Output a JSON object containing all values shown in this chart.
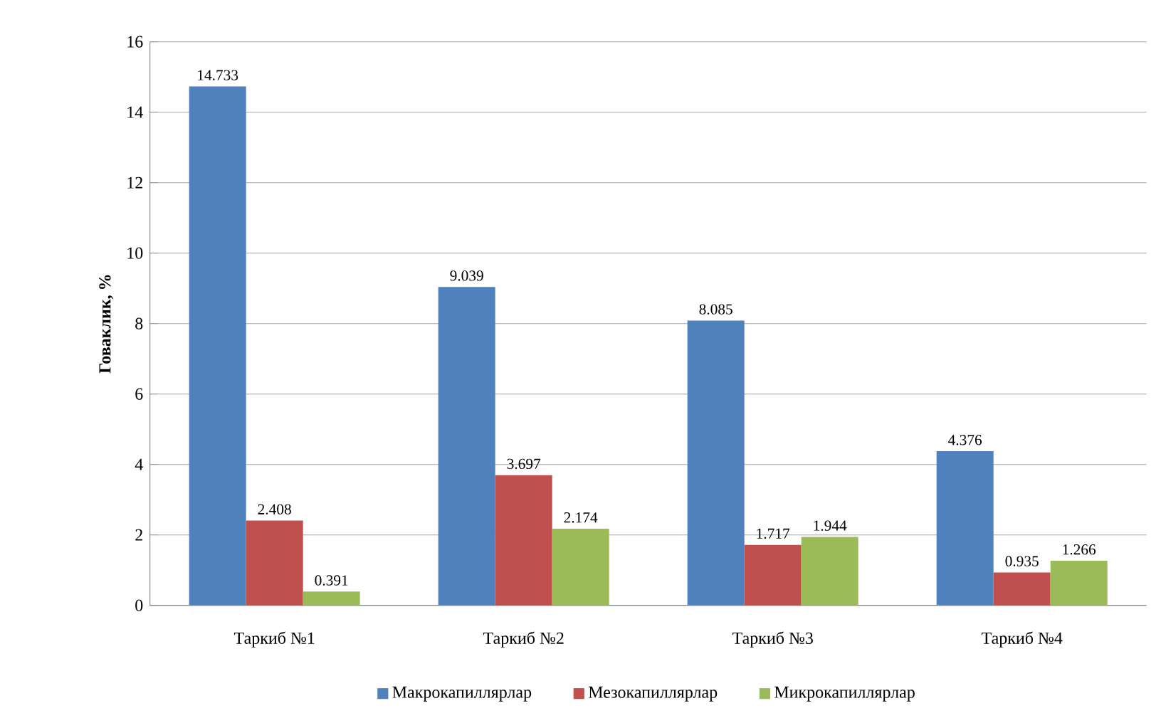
{
  "chart_data": {
    "type": "bar",
    "ylabel": "Говаклик, %",
    "categories": [
      "Таркиб №1",
      "Таркиб №2",
      "Таркиб №3",
      "Таркиб №4"
    ],
    "series": [
      {
        "name": "Макрокапиллярлар",
        "color": "#4f81bd",
        "values": [
          14.733,
          9.039,
          8.085,
          4.376
        ]
      },
      {
        "name": "Мезокапиллярлар",
        "color": "#c0504d",
        "values": [
          2.408,
          3.697,
          1.717,
          0.935
        ]
      },
      {
        "name": "Микрокапиллярлар",
        "color": "#9bbb59",
        "values": [
          0.391,
          2.174,
          1.944,
          1.266
        ]
      }
    ],
    "ylim": [
      0,
      16
    ],
    "yticks": [
      0,
      2,
      4,
      6,
      8,
      10,
      12,
      14,
      16
    ],
    "grid": "y",
    "legend": "bottom",
    "data_labels": true
  }
}
